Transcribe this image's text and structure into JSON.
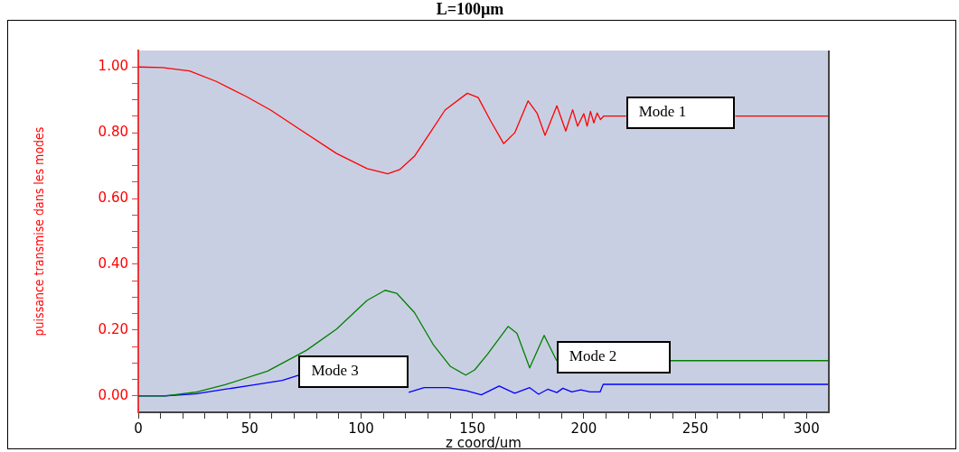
{
  "chart_data": {
    "type": "line",
    "title": "L=100µm",
    "xlabel": "z coord/um",
    "ylabel": "puissance transmise dans les modes",
    "xlim": [
      0,
      310
    ],
    "ylim": [
      -0.05,
      1.05
    ],
    "xticks": [
      0,
      {
        "value": 10,
        "label": null
      },
      {
        "value": 20,
        "label": null
      },
      {
        "value": 30,
        "label": null
      },
      {
        "value": 40,
        "label": null
      },
      50,
      {
        "value": 60,
        "label": null
      },
      {
        "value": 70,
        "label": null
      },
      {
        "value": 80,
        "label": null
      },
      {
        "value": 90,
        "label": null
      },
      100,
      {
        "value": 110,
        "label": null
      },
      {
        "value": 120,
        "label": null
      },
      {
        "value": 130,
        "label": null
      },
      {
        "value": 140,
        "label": null
      },
      150,
      {
        "value": 160,
        "label": null
      },
      {
        "value": 170,
        "label": null
      },
      {
        "value": 180,
        "label": null
      },
      {
        "value": 190,
        "label": null
      },
      200,
      {
        "value": 210,
        "label": null
      },
      {
        "value": 220,
        "label": null
      },
      {
        "value": 230,
        "label": null
      },
      {
        "value": 240,
        "label": null
      },
      250,
      {
        "value": 260,
        "label": null
      },
      {
        "value": 270,
        "label": null
      },
      {
        "value": 280,
        "label": null
      },
      {
        "value": 290,
        "label": null
      },
      300
    ],
    "yticks": [
      {
        "value": 0,
        "label": "0.00"
      },
      {
        "value": 0.05,
        "label": null
      },
      {
        "value": 0.1,
        "label": null
      },
      {
        "value": 0.15,
        "label": null
      },
      {
        "value": 0.2,
        "label": "0.20"
      },
      {
        "value": 0.25,
        "label": null
      },
      {
        "value": 0.3,
        "label": null
      },
      {
        "value": 0.35,
        "label": null
      },
      {
        "value": 0.4,
        "label": "0.40"
      },
      {
        "value": 0.45,
        "label": null
      },
      {
        "value": 0.5,
        "label": null
      },
      {
        "value": 0.55,
        "label": null
      },
      {
        "value": 0.6,
        "label": "0.60"
      },
      {
        "value": 0.65,
        "label": null
      },
      {
        "value": 0.7,
        "label": null
      },
      {
        "value": 0.75,
        "label": null
      },
      {
        "value": 0.8,
        "label": "0.80"
      },
      {
        "value": 0.85,
        "label": null
      },
      {
        "value": 0.9,
        "label": null
      },
      {
        "value": 0.95,
        "label": null
      },
      {
        "value": 1,
        "label": "1.00"
      }
    ],
    "grid": false,
    "legend": false,
    "marker": "none",
    "line_style": "solid",
    "series": [
      {
        "name": "Mode 1",
        "color": "#ff0000",
        "x": [
          0,
          10.8,
          23,
          35,
          48.5,
          59.4,
          71.5,
          89,
          102.7,
          112,
          117.4,
          124,
          131,
          137.7,
          147.7,
          152.6,
          158,
          164,
          169,
          175,
          179,
          182.6,
          187.9,
          191.9,
          195,
          197.2,
          200,
          201.5,
          203,
          204.5,
          206,
          207.5,
          209,
          219,
          220,
          267,
          268,
          310
        ],
        "values": [
          1.0,
          0.998,
          0.988,
          0.956,
          0.91,
          0.869,
          0.815,
          0.737,
          0.691,
          0.675,
          0.688,
          0.729,
          0.8,
          0.869,
          0.92,
          0.907,
          0.838,
          0.767,
          0.8,
          0.897,
          0.86,
          0.792,
          0.882,
          0.805,
          0.87,
          0.82,
          0.858,
          0.82,
          0.865,
          0.83,
          0.86,
          0.84,
          0.851,
          0.851,
          null,
          null,
          0.851,
          0.851
        ]
      },
      {
        "name": "Mode 2",
        "color": "#008000",
        "x": [
          0,
          12,
          25.6,
          39,
          58,
          75.6,
          89,
          102.7,
          110.8,
          116,
          124,
          132.3,
          140,
          147,
          151,
          156.7,
          166,
          170,
          175.7,
          182.2,
          187.8,
          189,
          238,
          239,
          310
        ],
        "values": [
          0,
          0,
          0.011,
          0.034,
          0.075,
          0.139,
          0.203,
          0.29,
          0.321,
          0.312,
          0.253,
          0.157,
          0.09,
          0.063,
          0.079,
          0.126,
          0.211,
          0.19,
          0.085,
          0.184,
          0.107,
          null,
          null,
          0.107,
          0.107
        ]
      },
      {
        "name": "Mode 3",
        "color": "#0000ff",
        "x": [
          0,
          12,
          25.6,
          39,
          52.5,
          64.7,
          72,
          73,
          120,
          121.4,
          128.3,
          139,
          147,
          154,
          162,
          169,
          175.7,
          179.7,
          183.8,
          187.9,
          190.6,
          194.6,
          198.7,
          202.8,
          207.3,
          208.7,
          310
        ],
        "values": [
          0,
          0,
          0.006,
          0.02,
          0.034,
          0.047,
          0.063,
          null,
          null,
          0.011,
          0.025,
          0.025,
          0.016,
          0.003,
          0.03,
          0.008,
          0.025,
          0.005,
          0.02,
          0.01,
          0.023,
          0.012,
          0.018,
          0.012,
          0.012,
          0.035,
          0.035
        ]
      }
    ]
  }
}
